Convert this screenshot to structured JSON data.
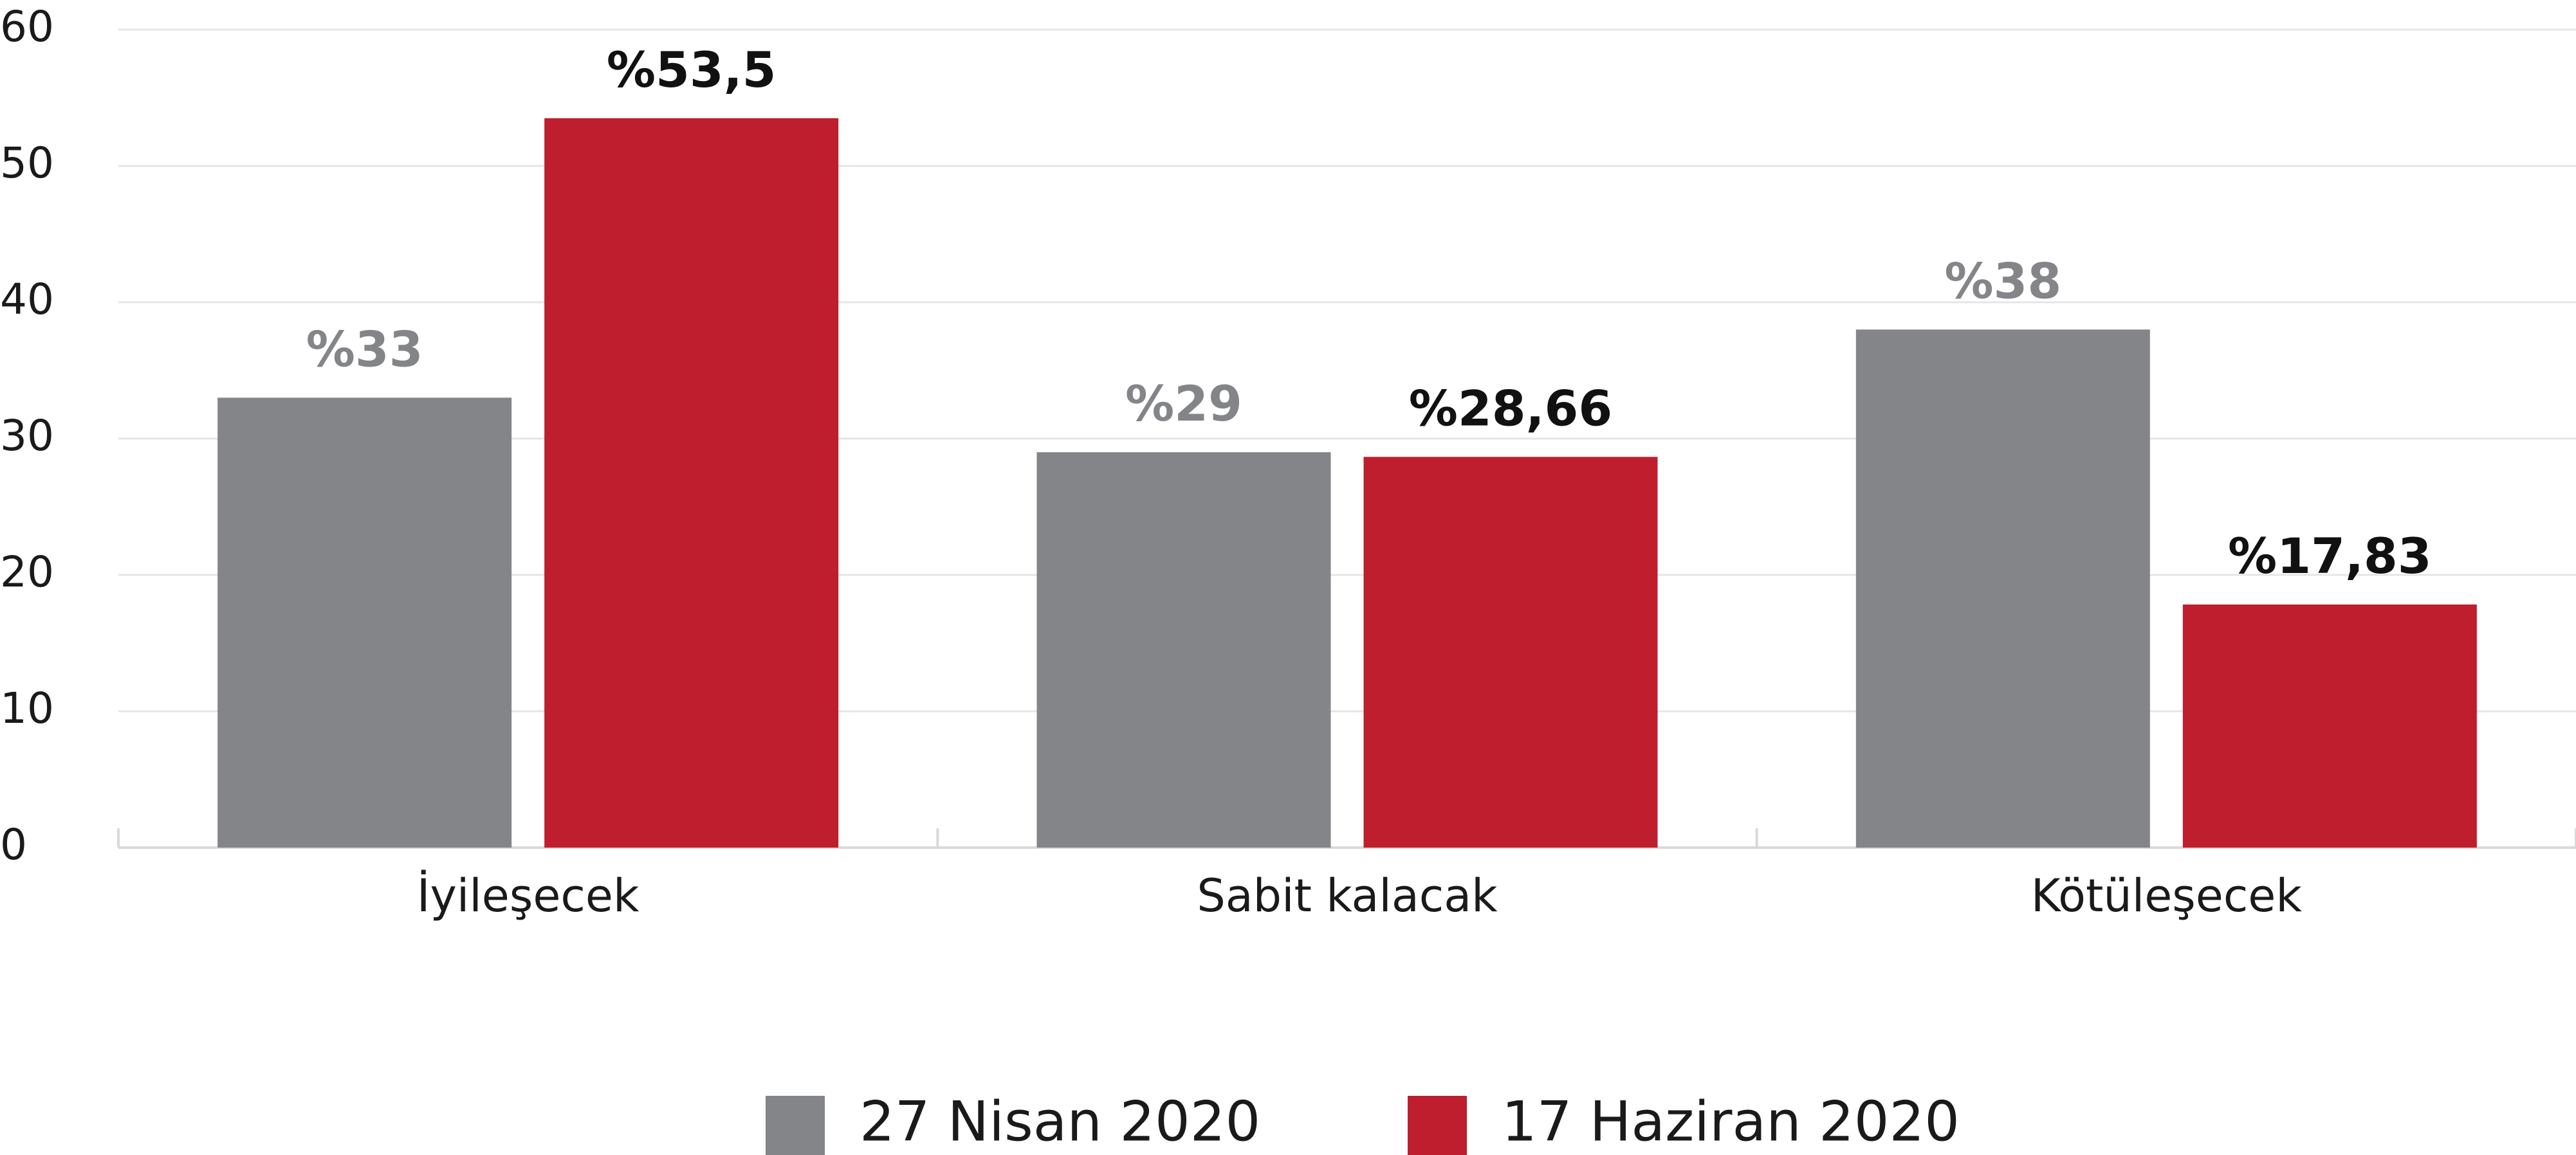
{
  "chart_data": {
    "type": "bar",
    "categories": [
      "İyileşecek",
      "Sabit kalacak",
      "Kötüleşecek"
    ],
    "series": [
      {
        "name": "27 Nisan 2020",
        "color": "#848589",
        "values": [
          33,
          29,
          38
        ],
        "value_labels": [
          "%33",
          "%29",
          "%38"
        ]
      },
      {
        "name": "17 Haziran 2020",
        "color": "#be1e2d",
        "values": [
          53.5,
          28.66,
          17.83
        ],
        "value_labels": [
          "%53,5",
          "%28,66",
          "%17,83"
        ]
      }
    ],
    "ylim": [
      0,
      60
    ],
    "yticks": [
      0,
      10,
      20,
      30,
      40,
      50,
      60
    ],
    "grid": true,
    "legend": "bottom"
  }
}
